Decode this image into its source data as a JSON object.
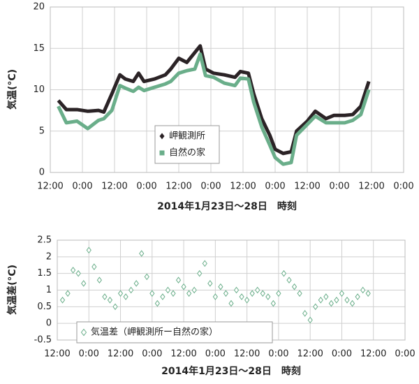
{
  "chart_data": [
    {
      "type": "line",
      "xlabel": "2014年1月23日～28日　時刻",
      "ylabel": "気温(°C)",
      "x": [
        3,
        6,
        10,
        14,
        18,
        20,
        23,
        26,
        28,
        31,
        33,
        35,
        39,
        43,
        45,
        48,
        51,
        54,
        56,
        58,
        61,
        65,
        69,
        71,
        74,
        76,
        79,
        82,
        84,
        87,
        90,
        92,
        96,
        99,
        103,
        106,
        110,
        113,
        116,
        119
      ],
      "series": [
        {
          "name": "岬観測所",
          "color": "#2b2326",
          "marker": "diamond",
          "values": [
            8.7,
            7.6,
            7.6,
            7.4,
            7.5,
            7.3,
            9.5,
            11.8,
            11.3,
            11.0,
            12.0,
            11.0,
            11.3,
            11.8,
            12.5,
            13.8,
            13.3,
            14.5,
            15.3,
            12.5,
            12.0,
            11.8,
            11.5,
            12.2,
            12.0,
            9.5,
            6.5,
            4.5,
            2.8,
            2.3,
            2.5,
            5.0,
            6.2,
            7.4,
            6.5,
            6.9,
            6.9,
            7.0,
            8.0,
            11.0
          ]
        },
        {
          "name": "自然の家",
          "color": "#6aae8a",
          "marker": "square",
          "values": [
            8.0,
            6.0,
            6.2,
            5.3,
            6.3,
            6.5,
            7.5,
            10.5,
            10.2,
            9.8,
            10.3,
            9.9,
            10.3,
            10.7,
            11.0,
            12.0,
            12.3,
            12.5,
            14.3,
            11.7,
            11.5,
            10.8,
            10.5,
            11.4,
            11.3,
            8.5,
            5.5,
            3.3,
            1.8,
            1.0,
            1.2,
            4.5,
            5.8,
            6.8,
            6.0,
            6.0,
            6.0,
            6.3,
            7.0,
            10.0
          ]
        }
      ],
      "xlim": [
        0,
        132
      ],
      "xticks": [
        {
          "value": 0,
          "label": "12:00"
        },
        {
          "value": 12,
          "label": "0:00"
        },
        {
          "value": 24,
          "label": "12:00"
        },
        {
          "value": 36,
          "label": "0:00"
        },
        {
          "value": 48,
          "label": "12:00"
        },
        {
          "value": 60,
          "label": "0:00"
        },
        {
          "value": 72,
          "label": "12:00"
        },
        {
          "value": 84,
          "label": "0:00"
        },
        {
          "value": 96,
          "label": "12:00"
        },
        {
          "value": 108,
          "label": "0:00"
        },
        {
          "value": 120,
          "label": "12:00"
        },
        {
          "value": 132,
          "label": "0:00"
        }
      ],
      "ylim": [
        0,
        20
      ],
      "yticks": [
        0,
        5,
        10,
        15,
        20
      ],
      "grid": true,
      "legend": "center"
    },
    {
      "type": "scatter",
      "xlabel": "2014年1月23日～28日　時刻",
      "ylabel": "気温差(°C)",
      "x": [
        2,
        4,
        6,
        8,
        10,
        12,
        14,
        16,
        18,
        20,
        22,
        24,
        26,
        28,
        30,
        32,
        34,
        36,
        38,
        40,
        42,
        44,
        46,
        48,
        50,
        52,
        54,
        56,
        58,
        60,
        62,
        64,
        66,
        68,
        70,
        72,
        74,
        76,
        78,
        80,
        82,
        84,
        86,
        88,
        90,
        92,
        94,
        96,
        98,
        100,
        102,
        104,
        106,
        108,
        110,
        112,
        114,
        116,
        118
      ],
      "series": [
        {
          "name": "気温差（岬観測所ー自然の家）",
          "color": "#6aae8a",
          "values": [
            0.7,
            0.9,
            1.6,
            1.5,
            1.2,
            2.2,
            1.7,
            1.3,
            0.8,
            0.7,
            0.5,
            0.9,
            0.8,
            1.0,
            1.2,
            2.1,
            1.4,
            0.9,
            0.6,
            0.8,
            1.0,
            0.9,
            1.3,
            1.1,
            0.9,
            1.0,
            1.5,
            1.8,
            1.2,
            0.8,
            1.1,
            0.9,
            0.6,
            1.0,
            0.8,
            0.7,
            0.9,
            1.0,
            0.9,
            0.8,
            0.6,
            0.9,
            1.5,
            1.3,
            1.1,
            0.9,
            0.3,
            0.1,
            0.5,
            0.7,
            0.8,
            0.6,
            0.7,
            0.9,
            0.7,
            0.6,
            0.8,
            1.0,
            0.9
          ]
        }
      ],
      "xlim": [
        0,
        132
      ],
      "xticks": [
        {
          "value": 0,
          "label": "12:00"
        },
        {
          "value": 12,
          "label": "0:00"
        },
        {
          "value": 24,
          "label": "12:00"
        },
        {
          "value": 36,
          "label": "0:00"
        },
        {
          "value": 48,
          "label": "12:00"
        },
        {
          "value": 60,
          "label": "0:00"
        },
        {
          "value": 72,
          "label": "12:00"
        },
        {
          "value": 84,
          "label": "0:00"
        },
        {
          "value": 96,
          "label": "12:00"
        },
        {
          "value": 108,
          "label": "0:00"
        },
        {
          "value": 120,
          "label": "12:00"
        },
        {
          "value": 132,
          "label": "0:00"
        }
      ],
      "ylim": [
        -0.5,
        2.5
      ],
      "yticks": [
        -0.5,
        0,
        0.5,
        1,
        1.5,
        2,
        2.5
      ],
      "grid": true,
      "legend": "lower left"
    }
  ]
}
